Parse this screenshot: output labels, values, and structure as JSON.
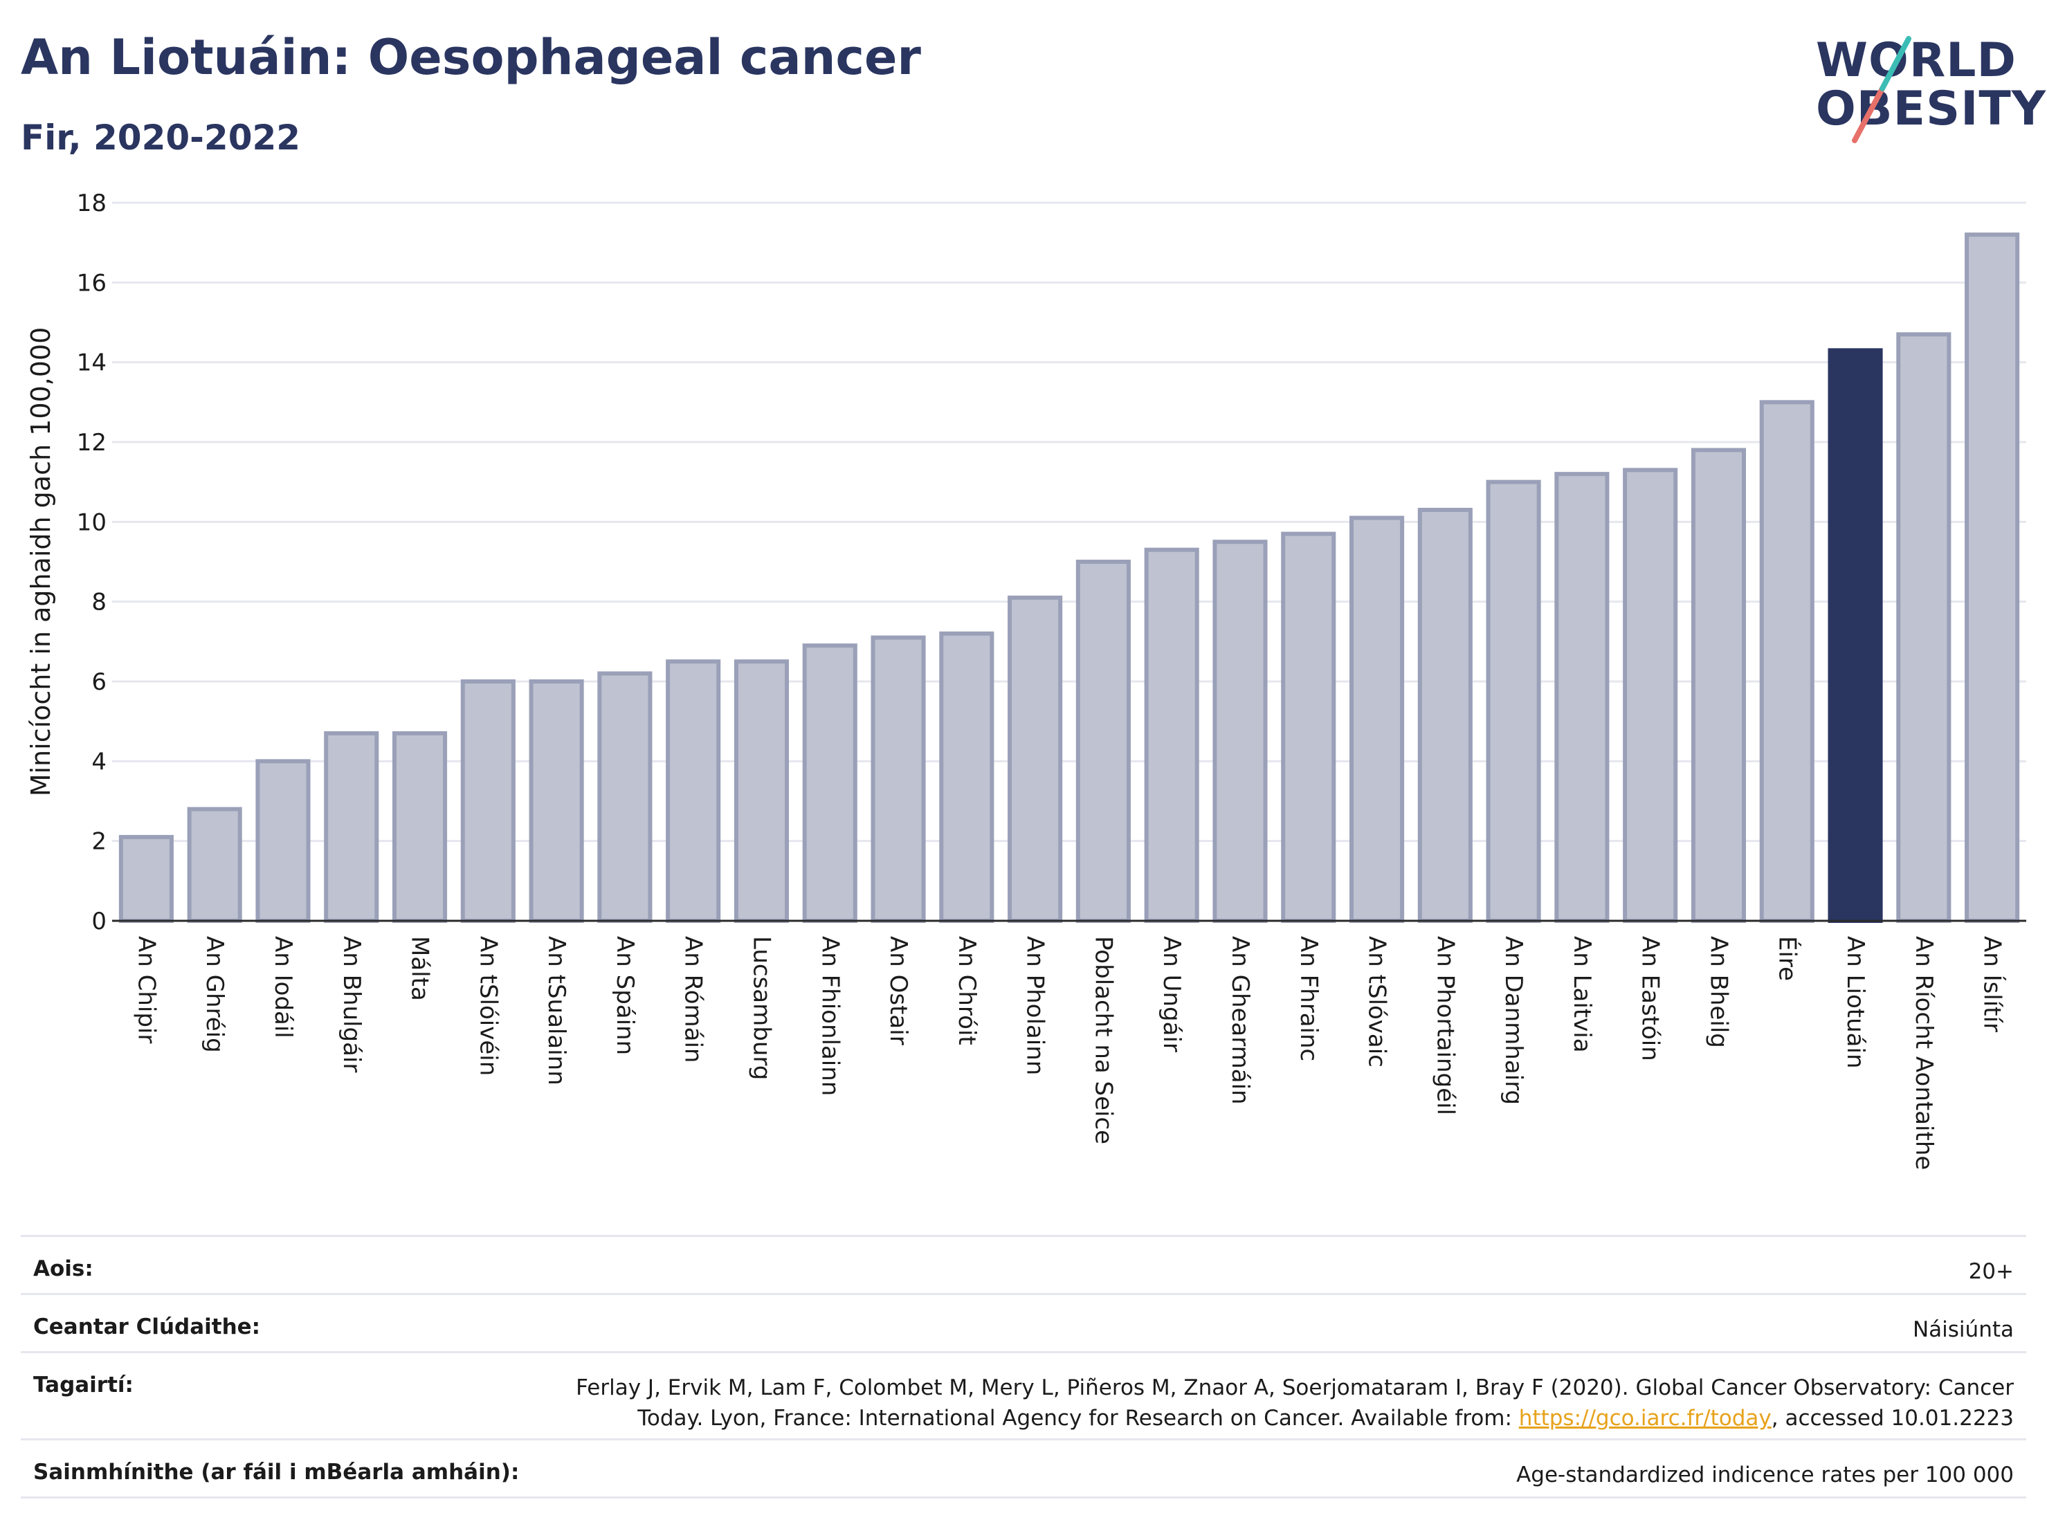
{
  "header": {
    "title": "An Liotuáin: Oesophageal cancer",
    "subtitle": "Fir, 2020-2022"
  },
  "logo": {
    "line1": "WORLD",
    "line2": "OBESITY"
  },
  "chart_data": {
    "type": "bar",
    "title": "",
    "xlabel": "",
    "ylabel": "Minicíocht in aghaidh gach 100,000",
    "ylim": [
      0,
      18
    ],
    "yticks": [
      0,
      2,
      4,
      6,
      8,
      10,
      12,
      14,
      16,
      18
    ],
    "grid": true,
    "highlight": "An Liotuáin",
    "colors": {
      "bar": "#bfc2d0",
      "bar_border": "#9aa0b8",
      "highlight": "#2a3560"
    },
    "categories": [
      "An Chipir",
      "An Ghréig",
      "An Iodáil",
      "An Bhulgáir",
      "Málta",
      "An tSlóivéin",
      "An tSualainn",
      "An Spáinn",
      "An Rómáin",
      "Lucsamburg",
      "An Fhionlainn",
      "An Ostair",
      "An Chróit",
      "An Pholainn",
      "Poblacht na Seice",
      "An Ungáir",
      "An Ghearmáin",
      "An Fhrainc",
      "An tSlóvaic",
      "An Phortaingéil",
      "An Danmhairg",
      "An Laitvia",
      "An Eastóin",
      "An Bheilg",
      "Éire",
      "An Liotuáin",
      "An Ríocht Aontaithe",
      "An Íslítír"
    ],
    "values": [
      2.1,
      2.8,
      4.0,
      4.7,
      4.7,
      6.0,
      6.0,
      6.2,
      6.5,
      6.5,
      6.9,
      7.1,
      7.2,
      8.1,
      9.0,
      9.3,
      9.5,
      9.7,
      10.1,
      10.3,
      11.0,
      11.2,
      11.3,
      11.8,
      13.0,
      14.3,
      14.7,
      17.2
    ]
  },
  "info": {
    "age_label": "Aois:",
    "age_value": "20+",
    "area_label": "Ceantar Clúdaithe:",
    "area_value": "Náisiúnta",
    "ref_label": "Tagairtí:",
    "ref_line1": "Ferlay J, Ervik M, Lam F, Colombet M, Mery L, Piñeros M, Znaor A, Soerjomataram I, Bray F (2020). Global Cancer Observatory: Cancer",
    "ref_line2_pre": "Today. Lyon, France: International Agency for Research on Cancer. Available from: ",
    "ref_link": "https://gco.iarc.fr/today",
    "ref_line2_post": ", accessed 10.01.2223",
    "def_label": "Sainmhínithe (ar fáil i mBéarla amháin):",
    "def_value": "Age-standardized indicence rates per 100 000"
  }
}
